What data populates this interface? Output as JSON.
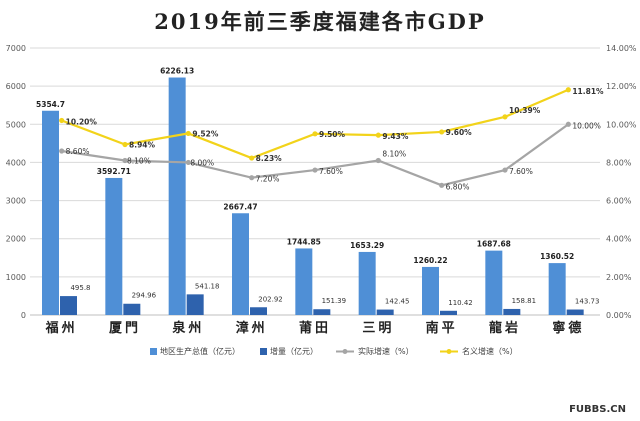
{
  "chart_data": {
    "type": "bar",
    "title": "2019年前三季度福建各市GDP",
    "categories": [
      "福州",
      "厦門",
      "泉州",
      "漳州",
      "莆田",
      "三明",
      "南平",
      "龍岩",
      "寧德"
    ],
    "left_axis": {
      "min": 0,
      "max": 7000,
      "step": 1000,
      "ticks": [
        "0",
        "1000",
        "2000",
        "3000",
        "4000",
        "5000",
        "6000",
        "7000"
      ]
    },
    "right_axis": {
      "min": 0,
      "max": 14,
      "step": 2,
      "ticks": [
        "0.00%",
        "2.00%",
        "4.00%",
        "6.00%",
        "8.00%",
        "10.00%",
        "12.00%",
        "14.00%"
      ]
    },
    "series": [
      {
        "name": "地区生产总值（亿元）",
        "type": "bar",
        "axis": "left",
        "color": "#4f8fd6",
        "values": [
          5354.7,
          3592.71,
          6226.13,
          2667.47,
          1744.85,
          1653.29,
          1260.22,
          1687.68,
          1360.52
        ],
        "labels": [
          "5354.7",
          "3592.71",
          "6226.13",
          "2667.47",
          "1744.85",
          "1653.29",
          "1260.22",
          "1687.68",
          "1360.52"
        ]
      },
      {
        "name": "增量（亿元）",
        "type": "bar",
        "axis": "left",
        "color": "#2e62ad",
        "values": [
          495.8,
          294.96,
          541.18,
          202.92,
          151.39,
          142.45,
          110.42,
          158.81,
          143.73
        ],
        "labels": [
          "495.8",
          "294.96",
          "541.18",
          "202.92",
          "151.39",
          "142.45",
          "110.42",
          "158.81",
          "143.73"
        ]
      },
      {
        "name": "实际增速（%）",
        "type": "line",
        "axis": "right",
        "color": "#a5a5a5",
        "values": [
          8.6,
          8.1,
          8.0,
          7.2,
          7.6,
          8.1,
          6.8,
          7.6,
          10.0
        ],
        "labels": [
          "8.60%",
          "8.10%",
          "8.00%",
          "7.20%",
          "7.60%",
          "8.10%",
          "6.80%",
          "7.60%",
          "10.00%"
        ]
      },
      {
        "name": "名义增速（%）",
        "type": "line",
        "axis": "right",
        "color": "#f2d31a",
        "values": [
          10.2,
          8.94,
          9.52,
          8.23,
          9.5,
          9.43,
          9.6,
          10.39,
          11.81
        ],
        "labels": [
          "10.20%",
          "8.94%",
          "9.52%",
          "8.23%",
          "9.50%",
          "9.43%",
          "9.60%",
          "10.39%",
          "11.81%"
        ]
      }
    ],
    "legend_position": "bottom",
    "grid": true
  },
  "watermark": "FUBBS.CN"
}
